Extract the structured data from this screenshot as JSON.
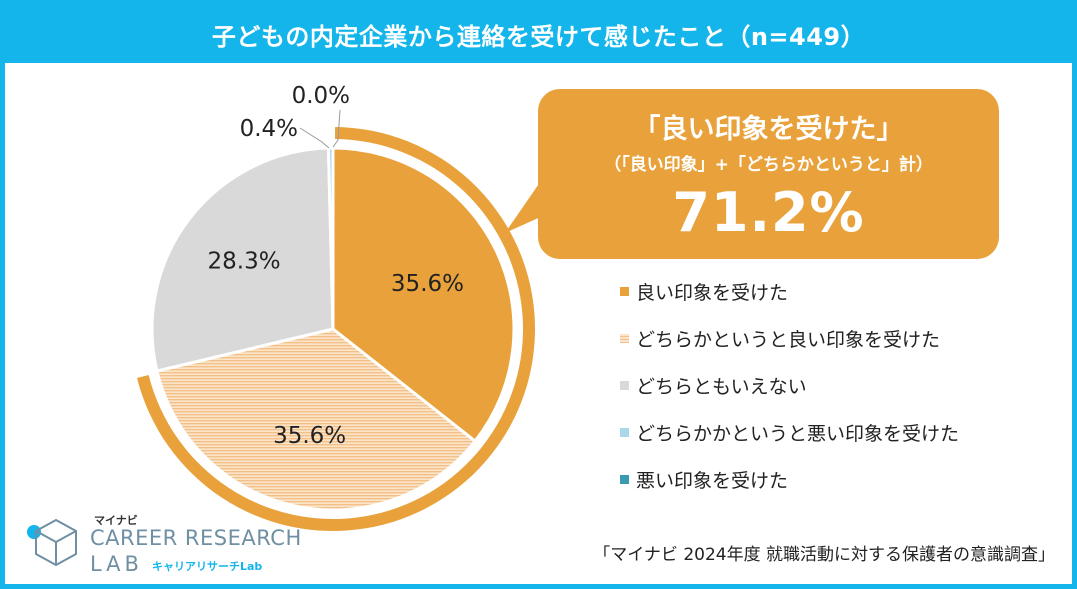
{
  "title": "子どもの内定企業から連絡を受けて感じたこと（n=449）",
  "callout": {
    "title": "「良い印象を受けた」",
    "subtitle": "（「良い印象」+「どちらかというと」計）",
    "value": "71.2%"
  },
  "source": "「マイナビ 2024年度 就職活動に対する保護者の意識調査」",
  "logo": {
    "brand": "マイナビ",
    "line1": "CAREER RESEARCH",
    "line2": "LAB",
    "line2_sub": "キャリアリサーチLab"
  },
  "colors": {
    "accent": "#13b5ea",
    "orange": "#e9a23b",
    "light_orange": "#f6cd99",
    "gray": "#d9d9d9",
    "light_blue": "#a9d8ea",
    "teal": "#3a9bb0"
  },
  "chart_data": {
    "type": "pie",
    "title": "子どもの内定企業から連絡を受けて感じたこと（n=449）",
    "start_angle_deg": 0,
    "direction": "clockwise",
    "slices": [
      {
        "label": "良い印象を受けた",
        "value": 35.6,
        "display": "35.6%",
        "color": "#e9a23b",
        "pattern": "solid"
      },
      {
        "label": "どちらかというと良い印象を受けた",
        "value": 35.6,
        "display": "35.6%",
        "color": "#f6cd99",
        "pattern": "stripes"
      },
      {
        "label": "どちらともいえない",
        "value": 28.3,
        "display": "28.3%",
        "color": "#d9d9d9",
        "pattern": "solid"
      },
      {
        "label": "どちらかかというと悪い印象を受けた",
        "value": 0.4,
        "display": "0.4%",
        "color": "#a9d8ea",
        "pattern": "solid"
      },
      {
        "label": "悪い印象を受けた",
        "value": 0.0,
        "display": "0.0%",
        "color": "#3a9bb0",
        "pattern": "solid"
      }
    ],
    "highlight": {
      "series": [
        "良い印象を受けた",
        "どちらかというと良い印象を受けた"
      ],
      "total": "71.2%"
    },
    "legend_position": "right"
  }
}
